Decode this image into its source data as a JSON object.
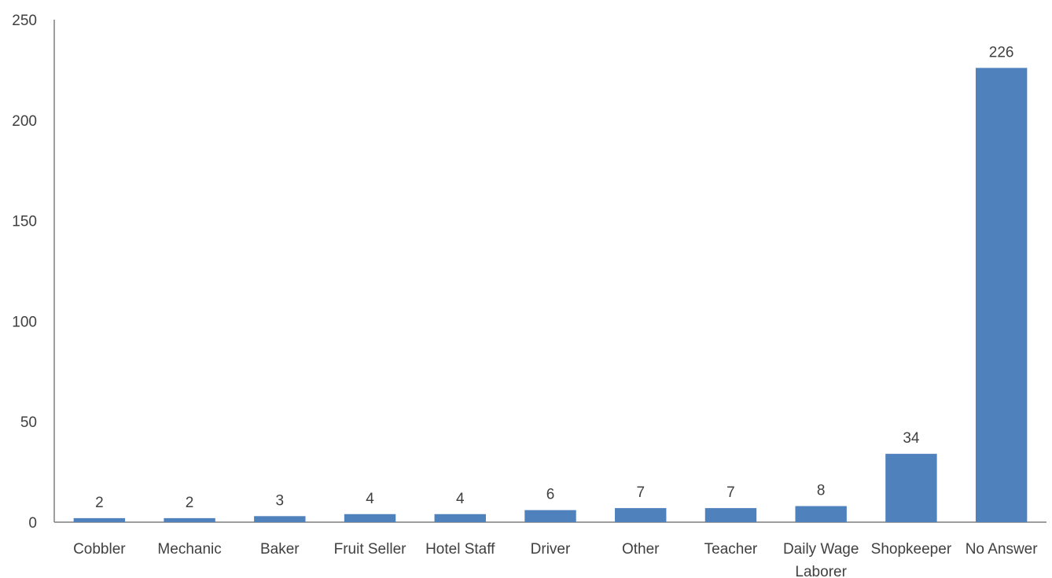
{
  "chart_data": {
    "type": "bar",
    "categories": [
      "Cobbler",
      "Mechanic",
      "Baker",
      "Fruit Seller",
      "Hotel Staff",
      "Driver",
      "Other",
      "Teacher",
      "Daily Wage Laborer",
      "Shopkeeper",
      "No Answer"
    ],
    "category_lines": [
      [
        "Cobbler"
      ],
      [
        "Mechanic"
      ],
      [
        "Baker"
      ],
      [
        "Fruit Seller"
      ],
      [
        "Hotel Staff"
      ],
      [
        "Driver"
      ],
      [
        "Other"
      ],
      [
        "Teacher"
      ],
      [
        "Daily Wage",
        "Laborer"
      ],
      [
        "Shopkeeper"
      ],
      [
        "No Answer"
      ]
    ],
    "values": [
      2,
      2,
      3,
      4,
      4,
      6,
      7,
      7,
      8,
      34,
      226
    ],
    "title": "",
    "xlabel": "",
    "ylabel": "",
    "ylim": [
      0,
      250
    ],
    "yticks": [
      0,
      50,
      100,
      150,
      200,
      250
    ],
    "grid": false,
    "legend": "none",
    "bar_color": "#4f81bd",
    "axis_color": "#7f7f7f",
    "text_color": "#404040"
  }
}
